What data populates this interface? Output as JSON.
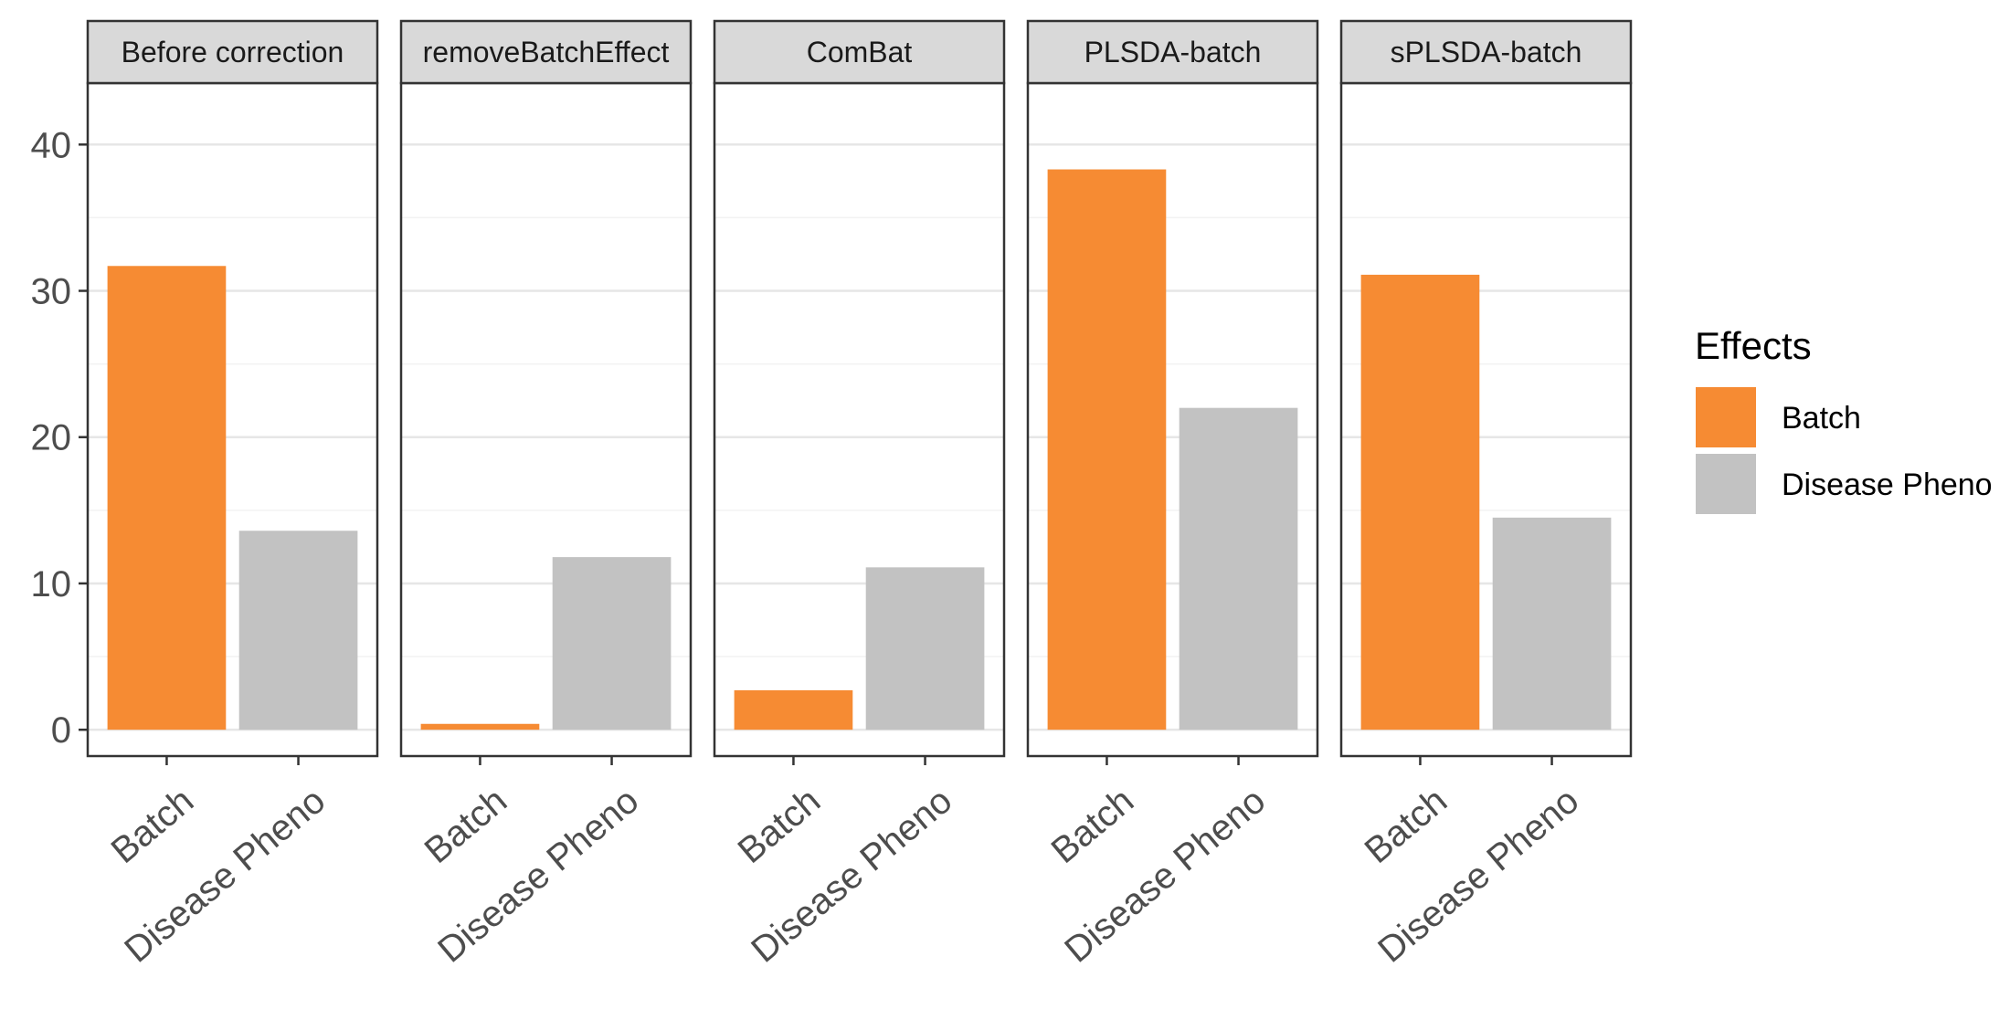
{
  "chart_data": {
    "type": "bar",
    "facet_by": "method",
    "panels": [
      {
        "title": "Before correction",
        "categories": [
          "Batch",
          "Disease Pheno"
        ],
        "values": [
          31.7,
          13.6
        ]
      },
      {
        "title": "removeBatchEffect",
        "categories": [
          "Batch",
          "Disease Pheno"
        ],
        "values": [
          0.4,
          11.8
        ]
      },
      {
        "title": "ComBat",
        "categories": [
          "Batch",
          "Disease Pheno"
        ],
        "values": [
          2.7,
          11.1
        ]
      },
      {
        "title": "PLSDA-batch",
        "categories": [
          "Batch",
          "Disease Pheno"
        ],
        "values": [
          38.3,
          22.0
        ]
      },
      {
        "title": "sPLSDA-batch",
        "categories": [
          "Batch",
          "Disease Pheno"
        ],
        "values": [
          31.1,
          14.5
        ]
      }
    ],
    "ylim": [
      -1.8,
      44.2
    ],
    "yticks": [
      0,
      10,
      20,
      30,
      40
    ],
    "xlabel": "",
    "ylabel": "",
    "grid": true,
    "legend": {
      "title": "Effects",
      "position": "right",
      "entries": [
        {
          "label": "Batch",
          "color": "#F68B33"
        },
        {
          "label": "Disease Pheno",
          "color": "#C2C2C2"
        }
      ]
    }
  }
}
